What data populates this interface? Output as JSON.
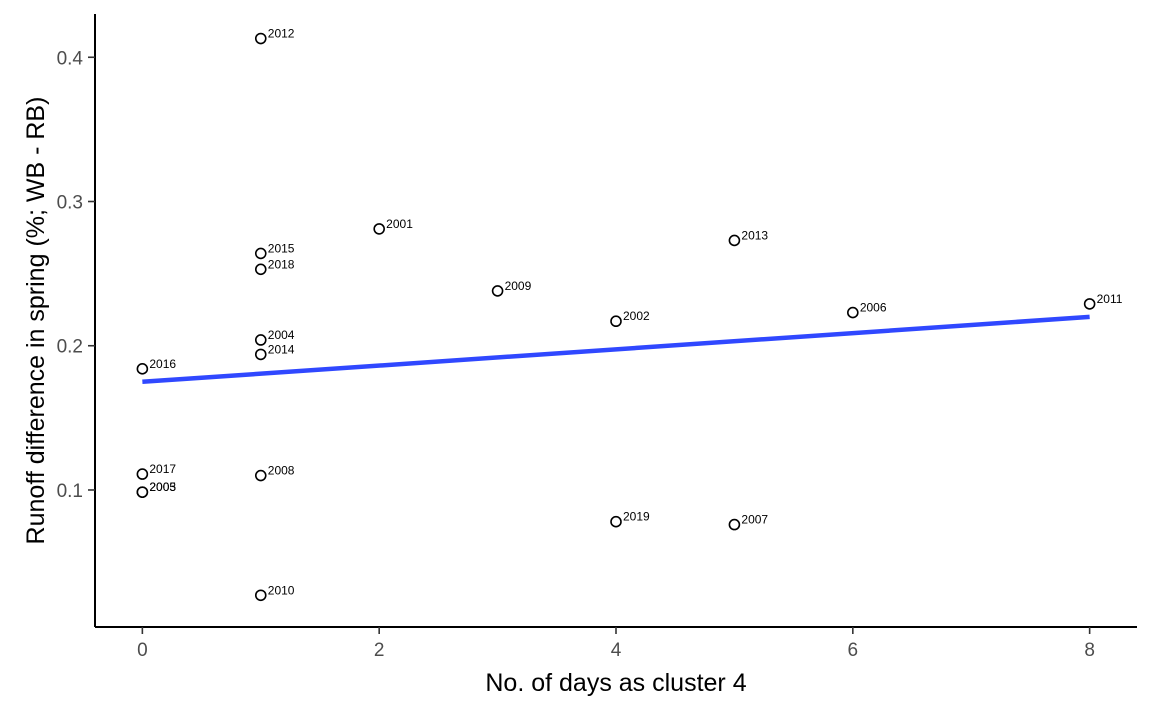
{
  "chart_data": {
    "type": "scatter",
    "title": "",
    "xlabel": "No. of days as cluster 4",
    "ylabel": "Runoff difference in spring (%; WB - RB)",
    "xlim": [
      -0.4,
      8.4
    ],
    "ylim": [
      0.005,
      0.43
    ],
    "x_ticks": [
      0,
      2,
      4,
      6,
      8
    ],
    "y_ticks": [
      0.1,
      0.2,
      0.3,
      0.4
    ],
    "grid": false,
    "points": [
      {
        "label": "2012",
        "x": 1,
        "y": 0.413
      },
      {
        "label": "2001",
        "x": 2,
        "y": 0.281
      },
      {
        "label": "2013",
        "x": 5,
        "y": 0.273
      },
      {
        "label": "2015",
        "x": 1,
        "y": 0.264
      },
      {
        "label": "2018",
        "x": 1,
        "y": 0.253
      },
      {
        "label": "2009",
        "x": 3,
        "y": 0.238
      },
      {
        "label": "2011",
        "x": 8,
        "y": 0.229
      },
      {
        "label": "2006",
        "x": 6,
        "y": 0.223
      },
      {
        "label": "2002",
        "x": 4,
        "y": 0.217
      },
      {
        "label": "2004",
        "x": 1,
        "y": 0.204
      },
      {
        "label": "2014",
        "x": 1,
        "y": 0.194
      },
      {
        "label": "2016",
        "x": 0,
        "y": 0.184
      },
      {
        "label": "2017",
        "x": 0,
        "y": 0.111
      },
      {
        "label": "2008",
        "x": 1,
        "y": 0.11
      },
      {
        "label": "2003",
        "x": 0,
        "y": 0.0985
      },
      {
        "label": "2005",
        "x": 0,
        "y": 0.0985
      },
      {
        "label": "2019",
        "x": 4,
        "y": 0.078
      },
      {
        "label": "2007",
        "x": 5,
        "y": 0.076
      },
      {
        "label": "2010",
        "x": 1,
        "y": 0.027
      }
    ],
    "trend_line": {
      "x": [
        0,
        8
      ],
      "y": [
        0.175,
        0.22
      ],
      "color": "#3048ff"
    }
  }
}
